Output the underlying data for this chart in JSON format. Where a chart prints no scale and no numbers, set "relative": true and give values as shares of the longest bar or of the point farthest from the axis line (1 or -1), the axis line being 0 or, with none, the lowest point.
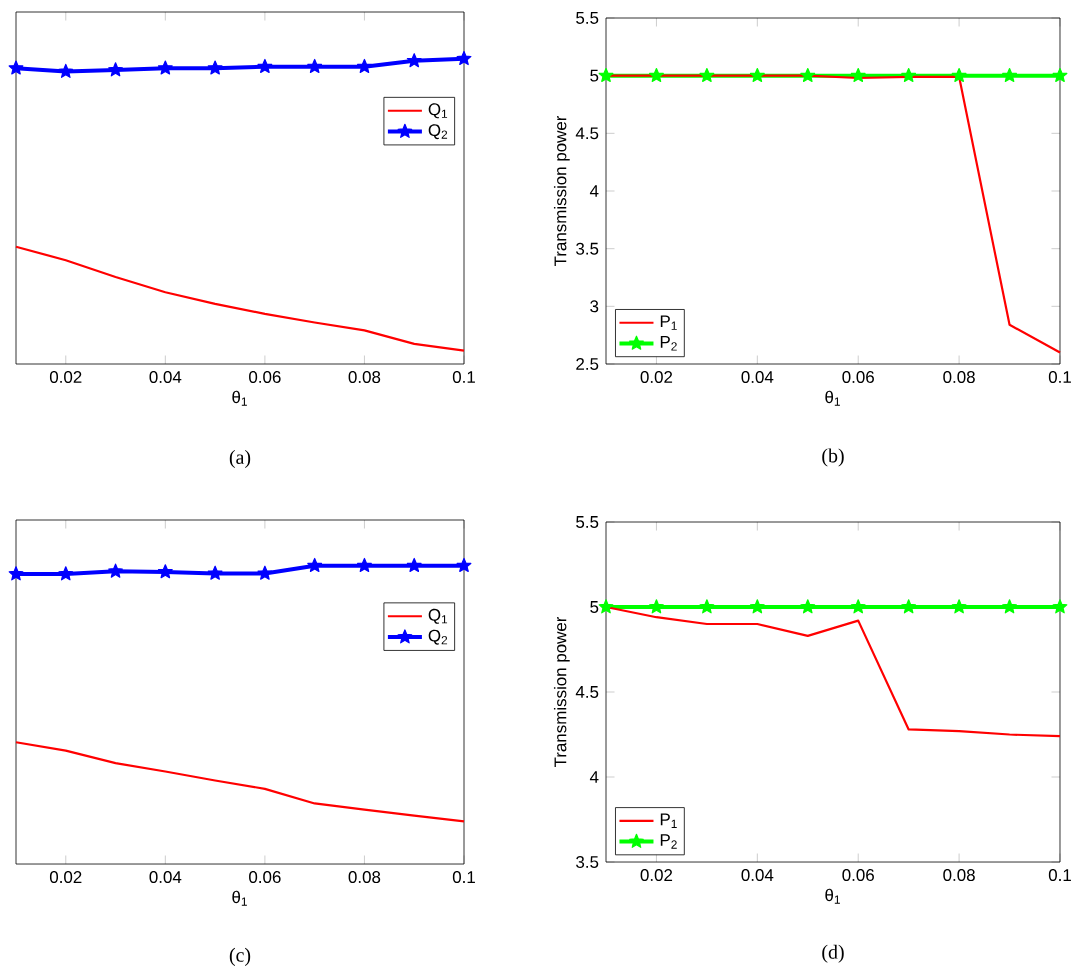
{
  "chart_data": [
    {
      "type": "line",
      "xlabel": "θ$_{1}$",
      "x": [
        0.01,
        0.02,
        0.03,
        0.04,
        0.05,
        0.06,
        0.07,
        0.08,
        0.09,
        0.1
      ],
      "xlim": [
        0.01,
        0.1
      ],
      "xticks": [
        0.02,
        0.04,
        0.06,
        0.08,
        0.1
      ],
      "relative": true,
      "tick_labels": "x",
      "legend": "right",
      "annotations": [
        "(a)"
      ],
      "series": [
        {
          "name": "Q$_{1}$",
          "color": "#ff0000",
          "marker": "none",
          "values": [
            0.384,
            0.34,
            0.285,
            0.235,
            0.197,
            0.164,
            0.136,
            0.11,
            0.066,
            0.044
          ]
        },
        {
          "name": "Q$_{2}$",
          "color": "#0000ff",
          "marker": "star",
          "values": [
            0.969,
            0.958,
            0.963,
            0.969,
            0.969,
            0.974,
            0.974,
            0.974,
            0.993,
            1
          ]
        }
      ]
    },
    {
      "type": "line",
      "xlabel": "θ$_{1}$",
      "ylabel": "Transmission power",
      "x": [
        0.01,
        0.02,
        0.03,
        0.04,
        0.05,
        0.06,
        0.07,
        0.08,
        0.09,
        0.1
      ],
      "xlim": [
        0.01,
        0.1
      ],
      "xticks": [
        0.02,
        0.04,
        0.06,
        0.08,
        0.1
      ],
      "ylim": [
        2.5,
        5.5
      ],
      "yticks": [
        2.5,
        3,
        3.5,
        4,
        4.5,
        5,
        5.5
      ],
      "legend": "bottom left",
      "annotations": [
        "(b)"
      ],
      "series": [
        {
          "name": "P$_{1}$",
          "color": "#ff0000",
          "marker": "none",
          "values": [
            5,
            5,
            5,
            5,
            5,
            4.98,
            4.99,
            4.99,
            2.84,
            2.6
          ]
        },
        {
          "name": "P$_{2}$",
          "color": "#00ff00",
          "marker": "star",
          "values": [
            5,
            5,
            5,
            5,
            5,
            5,
            5,
            5,
            5,
            5
          ]
        }
      ]
    },
    {
      "type": "line",
      "xlabel": "θ$_{1}$",
      "x": [
        0.01,
        0.02,
        0.03,
        0.04,
        0.05,
        0.06,
        0.07,
        0.08,
        0.09,
        0.1
      ],
      "xlim": [
        0.01,
        0.1
      ],
      "xticks": [
        0.02,
        0.04,
        0.06,
        0.08,
        0.1
      ],
      "relative": true,
      "tick_labels": "x",
      "legend": "right",
      "annotations": [
        "(c)"
      ],
      "series": [
        {
          "name": "Q$_{1}$",
          "color": "#ff0000",
          "marker": "none",
          "values": [
            0.408,
            0.38,
            0.338,
            0.31,
            0.28,
            0.252,
            0.203,
            0.182,
            0.162,
            0.143
          ]
        },
        {
          "name": "Q$_{2}$",
          "color": "#0000ff",
          "marker": "star",
          "values": [
            0.972,
            0.972,
            0.981,
            0.979,
            0.974,
            0.974,
            1,
            1,
            1,
            1
          ]
        }
      ]
    },
    {
      "type": "line",
      "xlabel": "θ$_{1}$",
      "ylabel": "Transmission power",
      "x": [
        0.01,
        0.02,
        0.03,
        0.04,
        0.05,
        0.06,
        0.07,
        0.08,
        0.09,
        0.1
      ],
      "xlim": [
        0.01,
        0.1
      ],
      "xticks": [
        0.02,
        0.04,
        0.06,
        0.08,
        0.1
      ],
      "ylim": [
        3.5,
        5.5
      ],
      "yticks": [
        3.5,
        4,
        4.5,
        5,
        5.5
      ],
      "legend": "bottom left",
      "annotations": [
        "(d)"
      ],
      "series": [
        {
          "name": "P$_{1}$",
          "color": "#ff0000",
          "marker": "none",
          "values": [
            5,
            4.94,
            4.9,
            4.9,
            4.83,
            4.92,
            4.28,
            4.27,
            4.25,
            4.24
          ]
        },
        {
          "name": "P$_{2}$",
          "color": "#00ff00",
          "marker": "star",
          "values": [
            5,
            5,
            5,
            5,
            5,
            5,
            5,
            5,
            5,
            5
          ]
        }
      ]
    }
  ]
}
